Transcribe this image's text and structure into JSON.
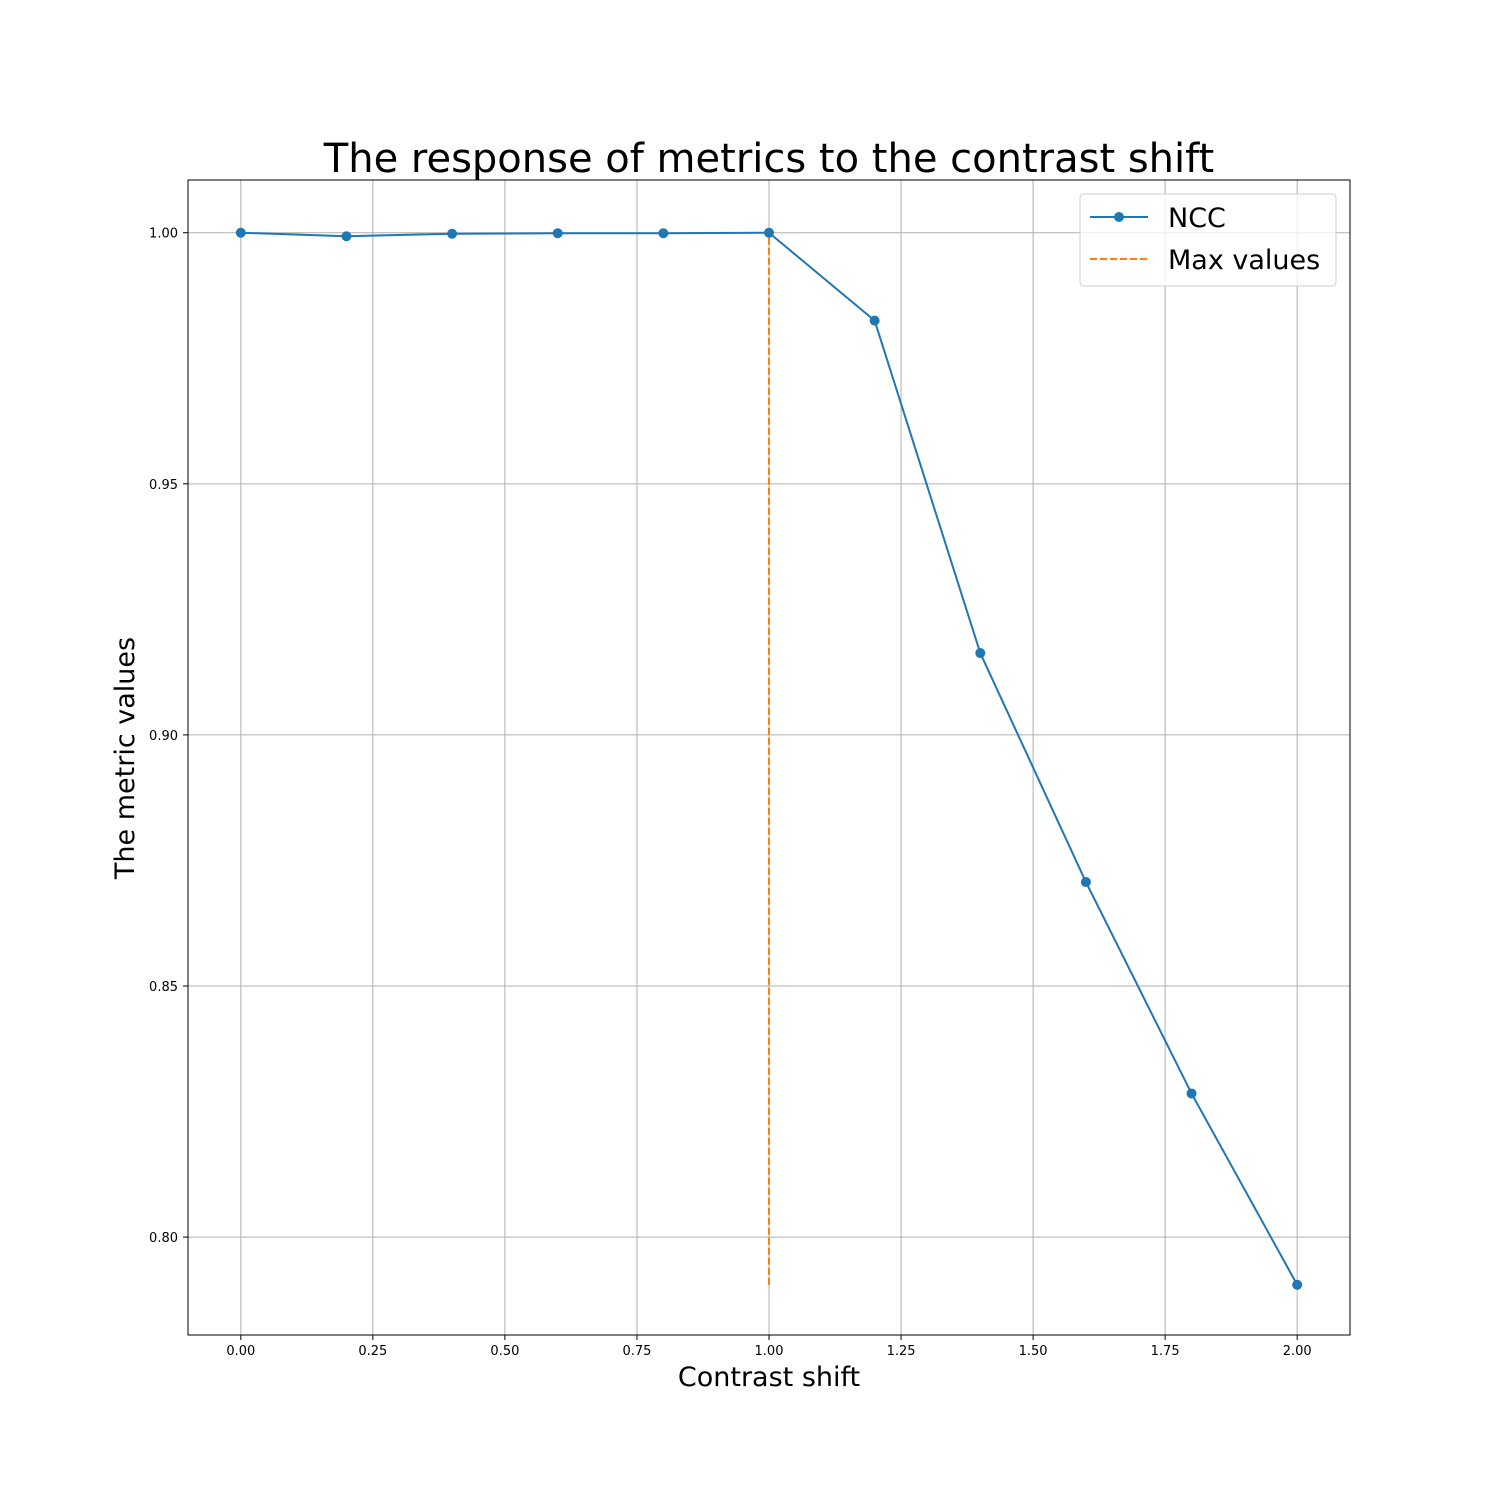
{
  "chart_data": {
    "type": "line",
    "title": "The response of metrics to the contrast shift",
    "xlabel": "Contrast shift",
    "ylabel": "The metric values",
    "xlim": [
      -0.1,
      2.1
    ],
    "ylim": [
      0.7805,
      1.0105
    ],
    "x_ticks": [
      0.0,
      0.25,
      0.5,
      0.75,
      1.0,
      1.25,
      1.5,
      1.75,
      2.0
    ],
    "x_tick_labels": [
      "0.00",
      "0.25",
      "0.50",
      "0.75",
      "1.00",
      "1.25",
      "1.50",
      "1.75",
      "2.00"
    ],
    "y_ticks": [
      0.8,
      0.85,
      0.9,
      0.95,
      1.0
    ],
    "y_tick_labels": [
      "0.80",
      "0.85",
      "0.90",
      "0.95",
      "1.00"
    ],
    "grid": true,
    "legend_position": "top-right",
    "series": [
      {
        "name": "NCC",
        "style": "solid-with-markers",
        "color": "#1f77b4",
        "x": [
          0.0,
          0.2,
          0.4,
          0.6,
          0.8,
          1.0,
          1.2,
          1.4,
          1.6,
          1.8,
          2.0
        ],
        "y": [
          1.0,
          0.9993,
          0.9998,
          0.9999,
          0.9999,
          1.0,
          0.9825,
          0.9163,
          0.8707,
          0.8286,
          0.7905
        ]
      },
      {
        "name": "Max values",
        "style": "dashed",
        "color": "#ff7f0e",
        "x": [
          1.0,
          1.0
        ],
        "y": [
          0.7905,
          1.0
        ]
      }
    ]
  }
}
